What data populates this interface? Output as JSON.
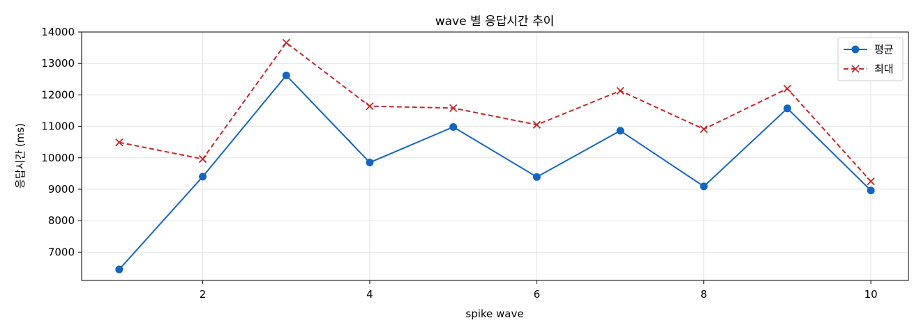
{
  "chart_data": {
    "type": "line",
    "title": "wave 별 응답시간 추이",
    "xlabel": "spike wave",
    "ylabel": "응답시간 (ms)",
    "x": [
      1,
      2,
      3,
      4,
      5,
      6,
      7,
      8,
      9,
      10
    ],
    "xlim": [
      0.55,
      10.45
    ],
    "ylim": [
      6100,
      14000
    ],
    "xticks": [
      2,
      4,
      6,
      8,
      10
    ],
    "yticks": [
      7000,
      8000,
      9000,
      10000,
      11000,
      12000,
      13000,
      14000
    ],
    "grid": true,
    "legend_position": "top-right",
    "series": [
      {
        "name": "평균",
        "values": [
          6450,
          9400,
          12620,
          9850,
          10980,
          9390,
          10860,
          9090,
          11570,
          8960
        ],
        "color": "#1565c0",
        "line_style": "solid",
        "marker": "circle"
      },
      {
        "name": "최대",
        "values": [
          10490,
          9960,
          13660,
          11640,
          11580,
          11050,
          12130,
          10910,
          12200,
          9250
        ],
        "color": "#c62828",
        "line_style": "dashed",
        "marker": "x"
      }
    ]
  }
}
